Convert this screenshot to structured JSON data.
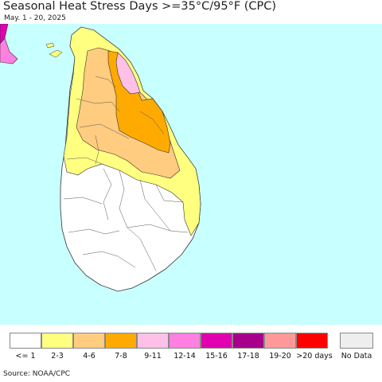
{
  "title": "Seasonal Heat Stress Days >=35°C/95°F (CPC)",
  "subtitle": "May. 1 - 20, 2025",
  "source": "Source: NOAA/CPC",
  "colors": {
    "sea": "#c8ffff",
    "land_none": "#ffffff",
    "c2_3": "#ffff80",
    "c4_6": "#ffcc80",
    "c7_8": "#ffaa00",
    "c9_11": "#ffc0e8",
    "c12_14": "#ff80e0",
    "c15_16": "#e000b0",
    "c17_18": "#a8008a",
    "c19_20": "#ff9999",
    "c20p": "#ff0000",
    "nodata": "#eeeeee"
  },
  "legend": {
    "items": [
      {
        "label": "<= 1",
        "color": "#ffffff"
      },
      {
        "label": "2-3",
        "color": "#ffff80"
      },
      {
        "label": "4-6",
        "color": "#ffcc80"
      },
      {
        "label": "7-8",
        "color": "#ffaa00"
      },
      {
        "label": "9-11",
        "color": "#ffc0e8"
      },
      {
        "label": "12-14",
        "color": "#ff80e0"
      },
      {
        "label": "15-16",
        "color": "#e000b0"
      },
      {
        "label": "17-18",
        "color": "#a8008a"
      },
      {
        "label": "19-20",
        "color": "#ff9999"
      },
      {
        "label": ">20 days",
        "color": "#ff0000"
      }
    ],
    "nodata": {
      "label": "No Data",
      "color": "#eeeeee"
    }
  }
}
